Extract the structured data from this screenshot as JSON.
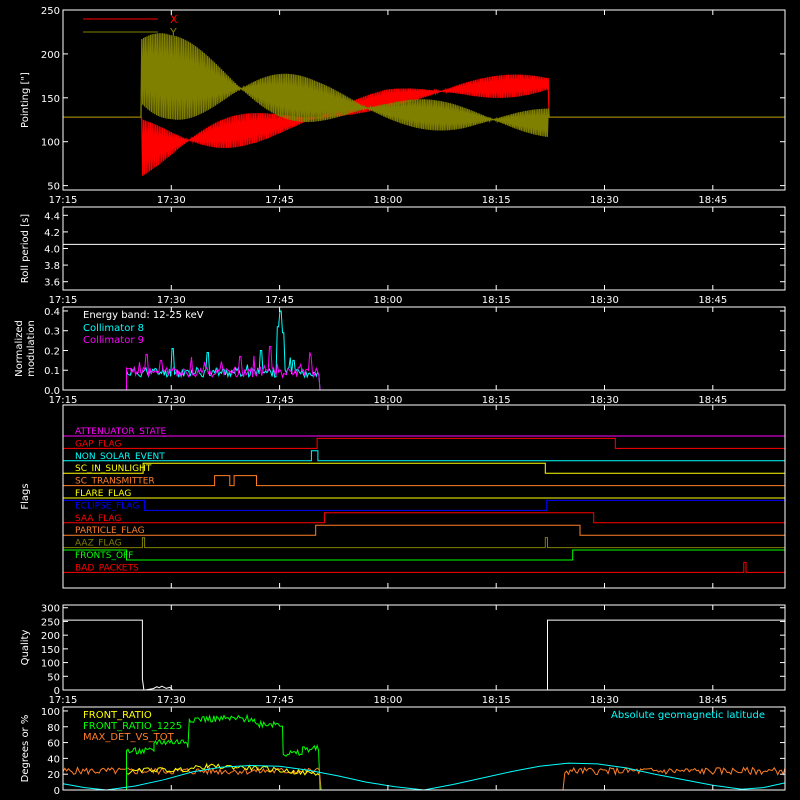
{
  "time_ticks": [
    "17:15",
    "17:30",
    "17:45",
    "18:00",
    "18:15",
    "18:30",
    "18:45"
  ],
  "chart_data": [
    {
      "type": "line",
      "ylabel": "Pointing [\"]",
      "ylim": [
        45,
        250
      ],
      "yticks": [
        50,
        100,
        150,
        200,
        250
      ],
      "x_unit": "minutes after 17:15",
      "xlim": [
        0,
        100
      ],
      "legend": "top-left",
      "series": [
        {
          "name": "X",
          "color": "#ff0000",
          "envelope": [
            [
              0,
              128,
              128
            ],
            [
              10.9,
              128,
              128
            ],
            [
              10.9,
              58,
              128
            ],
            [
              15,
              68,
              128
            ],
            [
              25,
              95,
              132
            ],
            [
              35,
              118,
              136
            ],
            [
              45,
              140,
              160
            ],
            [
              55,
              148,
              172
            ],
            [
              67.2,
              152,
              180
            ],
            [
              67.2,
              128,
              128
            ],
            [
              100,
              128,
              128
            ]
          ]
        },
        {
          "name": "Y",
          "color": "#808000",
          "envelope": [
            [
              0,
              128,
              128
            ],
            [
              10.9,
              128,
              128
            ],
            [
              10.9,
              120,
              240
            ],
            [
              15,
              125,
              222
            ],
            [
              25,
              125,
              195
            ],
            [
              35,
              122,
              170
            ],
            [
              45,
              118,
              152
            ],
            [
              55,
              110,
              145
            ],
            [
              67.2,
              105,
              138
            ],
            [
              67.2,
              128,
              128
            ],
            [
              100,
              128,
              128
            ]
          ]
        }
      ]
    },
    {
      "type": "line",
      "ylabel": "Roll period [s]",
      "ylim": [
        3.5,
        4.5
      ],
      "yticks": [
        "3.6",
        "3.8",
        "4.0",
        "4.2",
        "4.4"
      ],
      "series": [
        {
          "color": "#ffffff",
          "x": [
            0,
            100
          ],
          "y": [
            4.05,
            4.05
          ]
        }
      ]
    },
    {
      "type": "line",
      "ylabel": "Normalized modulation",
      "ylim": [
        0,
        0.42
      ],
      "yticks": [
        "0.0",
        "0.1",
        "0.2",
        "0.3",
        "0.4"
      ],
      "annotation": "Energy band: 12-25 keV",
      "legend": "top-left",
      "active_range": [
        8.8,
        35.6
      ],
      "series": [
        {
          "name": "Collimator 8",
          "color": "#00ffff",
          "base": 0.09,
          "peaks": [
            [
              15.2,
              0.21
            ],
            [
              20,
              0.19
            ],
            [
              27.5,
              0.2
            ],
            [
              29.7,
              0.32
            ],
            [
              30.1,
              0.4
            ],
            [
              30.5,
              0.29
            ],
            [
              32,
              0.15
            ]
          ]
        },
        {
          "name": "Collimator 9",
          "color": "#ff00ff",
          "base": 0.09,
          "peaks": [
            [
              11.5,
              0.18
            ],
            [
              13.5,
              0.15
            ],
            [
              24.6,
              0.17
            ],
            [
              28.7,
              0.22
            ],
            [
              34.2,
              0.17
            ]
          ]
        }
      ]
    },
    {
      "type": "line",
      "ylabel": "Flags",
      "series": [
        {
          "name": "ATTENUATOR_STATE",
          "color": "#ff00ff",
          "steps": [
            [
              0,
              0
            ]
          ]
        },
        {
          "name": "GAP_FLAG",
          "color": "#ff0000",
          "steps": [
            [
              0,
              0
            ],
            [
              35.2,
              1
            ],
            [
              76.5,
              0
            ]
          ]
        },
        {
          "name": "NON_SOLAR_EVENT",
          "color": "#00ffff",
          "steps": [
            [
              0,
              0
            ],
            [
              34.4,
              1
            ],
            [
              35.3,
              0
            ]
          ]
        },
        {
          "name": "SC_IN_SUNLIGHT",
          "color": "#ffff00",
          "steps": [
            [
              0,
              0
            ],
            [
              11.1,
              1
            ],
            [
              66.8,
              0
            ]
          ]
        },
        {
          "name": "SC_TRANSMITTER",
          "color": "#ff7f27",
          "steps": [
            [
              0,
              0
            ],
            [
              21,
              1
            ],
            [
              23.1,
              0
            ],
            [
              23.7,
              1
            ],
            [
              26.8,
              0
            ]
          ]
        },
        {
          "name": "FLARE_FLAG",
          "color": "#ffff00",
          "steps": [
            [
              0,
              0
            ]
          ]
        },
        {
          "name": "ECLIPSE_FLAG",
          "color": "#0000ff",
          "steps": [
            [
              0,
              1
            ],
            [
              11.3,
              0
            ],
            [
              67,
              1
            ]
          ]
        },
        {
          "name": "SAA_FLAG",
          "color": "#ff0000",
          "steps": [
            [
              0,
              0
            ],
            [
              36.2,
              1
            ],
            [
              73.5,
              0
            ]
          ]
        },
        {
          "name": "PARTICLE_FLAG",
          "color": "#ff7f27",
          "steps": [
            [
              0,
              0
            ],
            [
              35,
              1
            ],
            [
              71.6,
              0
            ]
          ]
        },
        {
          "name": "AAZ_FLAG",
          "color": "#808000",
          "steps": [
            [
              0,
              0
            ],
            [
              11,
              1
            ],
            [
              11.3,
              0
            ],
            [
              66.8,
              1
            ],
            [
              67.1,
              0
            ]
          ]
        },
        {
          "name": "FRONTS_OFF",
          "color": "#00ff00",
          "steps": [
            [
              0,
              1
            ],
            [
              8.8,
              0
            ],
            [
              70.6,
              1
            ]
          ]
        },
        {
          "name": "BAD_PACKETS",
          "color": "#ff0000",
          "steps": [
            [
              0,
              0
            ],
            [
              94.3,
              1
            ],
            [
              94.6,
              0
            ]
          ]
        }
      ]
    },
    {
      "type": "line",
      "ylabel": "Quality",
      "ylim": [
        0,
        310
      ],
      "yticks": [
        "0",
        "50",
        "100",
        "150",
        "200",
        "250",
        "300"
      ],
      "series": [
        {
          "color": "#ffffff",
          "x": [
            0,
            11,
            11,
            11.2,
            11.4,
            12.5,
            13,
            13.3,
            13.7,
            14.3,
            14.8,
            15.2,
            67.1,
            67.1,
            100
          ],
          "y": [
            255,
            255,
            40,
            0,
            0,
            5,
            12,
            8,
            14,
            6,
            10,
            0,
            0,
            255,
            255
          ]
        }
      ]
    },
    {
      "type": "line",
      "ylabel": "Degrees or %",
      "ylim": [
        0,
        105
      ],
      "yticks": [
        "0",
        "20",
        "40",
        "60",
        "80",
        "100"
      ],
      "legend": "top-left",
      "series": [
        {
          "name": "FRONT_RATIO",
          "color": "#ffff00",
          "x": [
            8.8,
            12,
            16,
            20,
            24,
            28,
            32,
            35.6
          ],
          "y": [
            22,
            26,
            25,
            30,
            29,
            27,
            23,
            20
          ]
        },
        {
          "name": "FRONT_RATIO_1225",
          "color": "#00ff00",
          "steps": [
            [
              0,
              0
            ],
            [
              8.8,
              49
            ],
            [
              12.6,
              61
            ],
            [
              17.3,
              57
            ],
            [
              17.5,
              90
            ],
            [
              26.6,
              83
            ],
            [
              27.2,
              84
            ],
            [
              30.5,
              46
            ],
            [
              33.2,
              52
            ],
            [
              35.6,
              0
            ]
          ]
        },
        {
          "name": "MAX_DET_VS_TOT",
          "color": "#ff7f27",
          "base": 24,
          "gaps": [
            [
              35.6,
              69.3
            ]
          ]
        },
        {
          "name": "Absolute geomagnetic latitude",
          "color": "#00ffff",
          "x": [
            0,
            3,
            6,
            10,
            14,
            18,
            22,
            26,
            30,
            34,
            38,
            42,
            46,
            50,
            54,
            58,
            62,
            66,
            70,
            74,
            78,
            82,
            86,
            90,
            94,
            97,
            100
          ],
          "y": [
            8,
            3,
            0,
            5,
            13,
            23,
            29,
            31,
            30,
            25,
            18,
            10,
            4,
            0,
            7,
            15,
            23,
            30,
            34,
            33,
            28,
            20,
            13,
            6,
            1,
            3,
            9
          ]
        }
      ]
    }
  ]
}
